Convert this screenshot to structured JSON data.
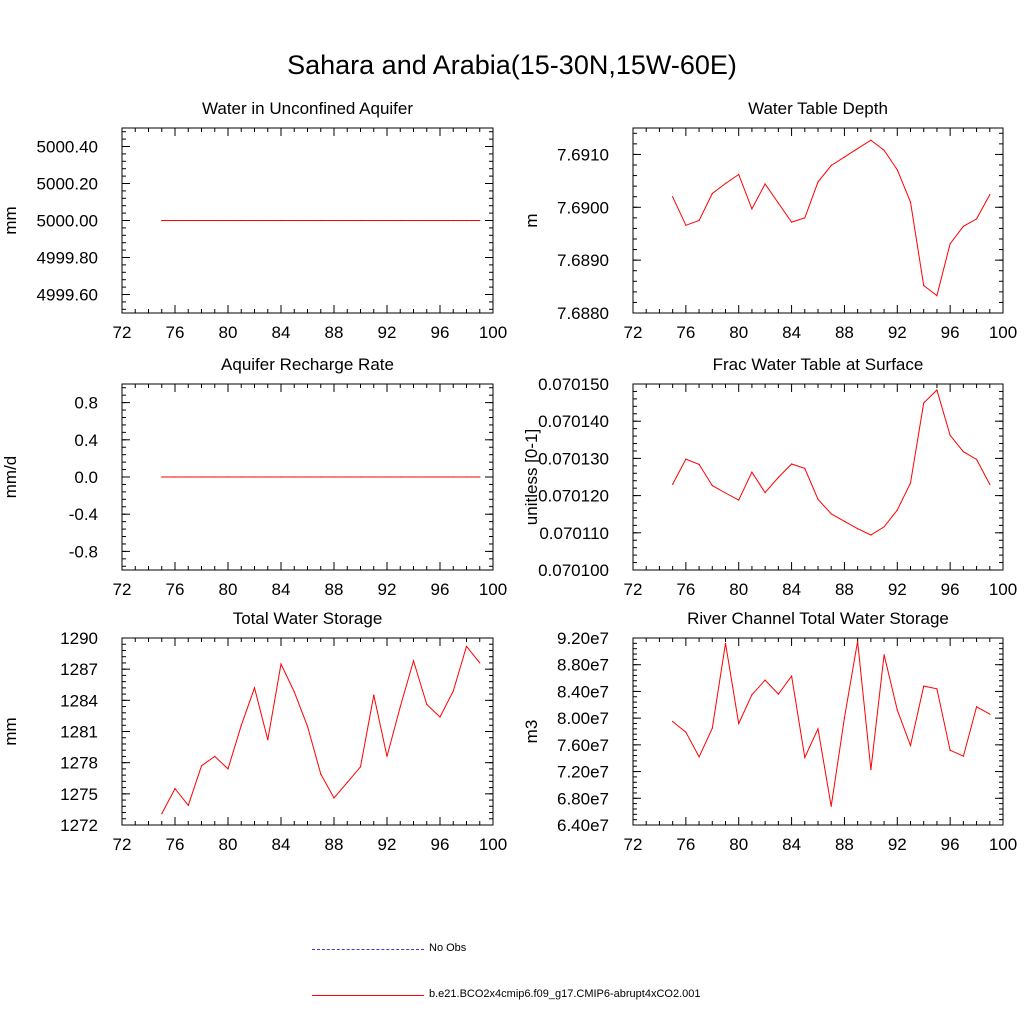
{
  "title": "Sahara and Arabia(15-30N,15W-60E)",
  "colors": {
    "model": "#ff0000",
    "obs": "#3b3bd6",
    "axis": "#000000"
  },
  "legend": {
    "obs_label": "No Obs",
    "model_label": "b.e21.BCO2x4cmip6.f09_g17.CMIP6-abrupt4xCO2.001"
  },
  "chart_data": [
    {
      "type": "line",
      "title": "Water in Unconfined Aquifer",
      "ylabel": "mm",
      "xlim": [
        72,
        100
      ],
      "ylim": [
        4999.5,
        5000.5
      ],
      "xticks": [
        "72",
        "76",
        "80",
        "84",
        "88",
        "92",
        "96",
        "100"
      ],
      "yticks": [
        {
          "v": 4999.6,
          "label": "4999.60"
        },
        {
          "v": 4999.8,
          "label": "4999.80"
        },
        {
          "v": 5000.0,
          "label": "5000.00"
        },
        {
          "v": 5000.2,
          "label": "5000.20"
        },
        {
          "v": 5000.4,
          "label": "5000.40"
        }
      ],
      "x": [
        75,
        76,
        77,
        78,
        79,
        80,
        81,
        82,
        83,
        84,
        85,
        86,
        87,
        88,
        89,
        90,
        91,
        92,
        93,
        94,
        95,
        96,
        97,
        98,
        99
      ],
      "y": [
        5000,
        5000,
        5000,
        5000,
        5000,
        5000,
        5000,
        5000,
        5000,
        5000,
        5000,
        5000,
        5000,
        5000,
        5000,
        5000,
        5000,
        5000,
        5000,
        5000,
        5000,
        5000,
        5000,
        5000,
        5000
      ]
    },
    {
      "type": "line",
      "title": "Water Table Depth",
      "ylabel": "m",
      "xlim": [
        72,
        100
      ],
      "ylim": [
        7.688,
        7.6915
      ],
      "xticks": [
        "72",
        "76",
        "80",
        "84",
        "88",
        "92",
        "96",
        "100"
      ],
      "yticks": [
        {
          "v": 7.688,
          "label": "7.6880"
        },
        {
          "v": 7.689,
          "label": "7.6890"
        },
        {
          "v": 7.69,
          "label": "7.6900"
        },
        {
          "v": 7.691,
          "label": "7.6910"
        }
      ],
      "x": [
        75,
        76,
        77,
        78,
        79,
        80,
        81,
        82,
        83,
        84,
        85,
        86,
        87,
        88,
        89,
        90,
        91,
        92,
        93,
        94,
        95,
        96,
        97,
        98,
        99
      ],
      "y": [
        7.6902,
        7.68966,
        7.68975,
        7.69026,
        7.69045,
        7.69062,
        7.68997,
        7.69044,
        7.69008,
        7.68972,
        7.6898,
        7.69048,
        7.69079,
        7.69095,
        7.69111,
        7.69127,
        7.69108,
        7.69071,
        7.6901,
        7.68852,
        7.68833,
        7.68931,
        7.68964,
        7.68978,
        7.69024
      ]
    },
    {
      "type": "line",
      "title": "Aquifer Recharge Rate",
      "ylabel": "mm/d",
      "xlim": [
        72,
        100
      ],
      "ylim": [
        -1.0,
        1.0
      ],
      "xticks": [
        "72",
        "76",
        "80",
        "84",
        "88",
        "92",
        "96",
        "100"
      ],
      "yticks": [
        {
          "v": -0.8,
          "label": "-0.8"
        },
        {
          "v": -0.4,
          "label": "-0.4"
        },
        {
          "v": 0.0,
          "label": "0.0"
        },
        {
          "v": 0.4,
          "label": "0.4"
        },
        {
          "v": 0.8,
          "label": "0.8"
        }
      ],
      "x": [
        75,
        76,
        77,
        78,
        79,
        80,
        81,
        82,
        83,
        84,
        85,
        86,
        87,
        88,
        89,
        90,
        91,
        92,
        93,
        94,
        95,
        96,
        97,
        98,
        99
      ],
      "y": [
        0,
        0,
        0,
        0,
        0,
        0,
        0,
        0,
        0,
        0,
        0,
        0,
        0,
        0,
        0,
        0,
        0,
        0,
        0,
        0,
        0,
        0,
        0,
        0,
        0
      ]
    },
    {
      "type": "line",
      "title": "Frac Water Table at Surface",
      "ylabel": "unitless [0-1]",
      "xlim": [
        72,
        100
      ],
      "ylim": [
        0.0701,
        0.07015
      ],
      "xticks": [
        "72",
        "76",
        "80",
        "84",
        "88",
        "92",
        "96",
        "100"
      ],
      "yticks": [
        {
          "v": 0.0701,
          "label": "0.070100"
        },
        {
          "v": 0.07011,
          "label": "0.070110"
        },
        {
          "v": 0.07012,
          "label": "0.070120"
        },
        {
          "v": 0.07013,
          "label": "0.070130"
        },
        {
          "v": 0.07014,
          "label": "0.070140"
        },
        {
          "v": 0.07015,
          "label": "0.070150"
        }
      ],
      "x": [
        75,
        76,
        77,
        78,
        79,
        80,
        81,
        82,
        83,
        84,
        85,
        86,
        87,
        88,
        89,
        90,
        91,
        92,
        93,
        94,
        95,
        96,
        97,
        98,
        99
      ],
      "y": [
        0.070123,
        0.0701298,
        0.0701284,
        0.0701227,
        0.0701207,
        0.0701188,
        0.0701263,
        0.0701208,
        0.0701249,
        0.0701285,
        0.0701273,
        0.070119,
        0.0701151,
        0.0701131,
        0.0701111,
        0.0701094,
        0.0701116,
        0.0701161,
        0.0701234,
        0.0701449,
        0.0701484,
        0.0701362,
        0.0701318,
        0.0701297,
        0.070123
      ]
    },
    {
      "type": "line",
      "title": "Total Water Storage",
      "ylabel": "mm",
      "xlim": [
        72,
        100
      ],
      "ylim": [
        1272,
        1290
      ],
      "xticks": [
        "72",
        "76",
        "80",
        "84",
        "88",
        "92",
        "96",
        "100"
      ],
      "yticks": [
        {
          "v": 1272,
          "label": "1272"
        },
        {
          "v": 1275,
          "label": "1275"
        },
        {
          "v": 1278,
          "label": "1278"
        },
        {
          "v": 1281,
          "label": "1281"
        },
        {
          "v": 1284,
          "label": "1284"
        },
        {
          "v": 1287,
          "label": "1287"
        },
        {
          "v": 1290,
          "label": "1290"
        }
      ],
      "x": [
        75,
        76,
        77,
        78,
        79,
        80,
        81,
        82,
        83,
        84,
        85,
        86,
        87,
        88,
        89,
        90,
        91,
        92,
        93,
        94,
        95,
        96,
        97,
        98,
        99
      ],
      "y": [
        1273.1,
        1275.5,
        1273.9,
        1277.7,
        1278.6,
        1277.4,
        1281.6,
        1285.2,
        1280.2,
        1287.5,
        1284.8,
        1281.5,
        1276.9,
        1274.6,
        1276.1,
        1277.6,
        1284.5,
        1278.6,
        1283.4,
        1287.8,
        1283.6,
        1282.4,
        1284.9,
        1289.2,
        1287.6
      ]
    },
    {
      "type": "line",
      "title": "River Channel Total Water Storage",
      "ylabel": "m3",
      "xlim": [
        72,
        100
      ],
      "ylim": [
        64000000.0,
        92000000.0
      ],
      "xticks": [
        "72",
        "76",
        "80",
        "84",
        "88",
        "92",
        "96",
        "100"
      ],
      "yticks": [
        {
          "v": 64000000.0,
          "label": "6.40e7"
        },
        {
          "v": 68000000.0,
          "label": "6.80e7"
        },
        {
          "v": 72000000.0,
          "label": "7.20e7"
        },
        {
          "v": 76000000.0,
          "label": "7.60e7"
        },
        {
          "v": 80000000.0,
          "label": "8.00e7"
        },
        {
          "v": 84000000.0,
          "label": "8.40e7"
        },
        {
          "v": 88000000.0,
          "label": "8.80e7"
        },
        {
          "v": 92000000.0,
          "label": "9.20e7"
        }
      ],
      "x": [
        75,
        76,
        77,
        78,
        79,
        80,
        81,
        82,
        83,
        84,
        85,
        86,
        87,
        88,
        89,
        90,
        91,
        92,
        93,
        94,
        95,
        96,
        97,
        98,
        99
      ],
      "y": [
        79500000.0,
        77900000.0,
        74200000.0,
        78500000.0,
        91200000.0,
        79200000.0,
        83500000.0,
        85700000.0,
        83600000.0,
        86300000.0,
        74100000.0,
        78400000.0,
        66800000.0,
        80000000.0,
        91500000.0,
        72300000.0,
        89500000.0,
        81200000.0,
        75900000.0,
        84800000.0,
        84400000.0,
        75200000.0,
        74300000.0,
        81700000.0,
        80600000.0
      ]
    }
  ]
}
